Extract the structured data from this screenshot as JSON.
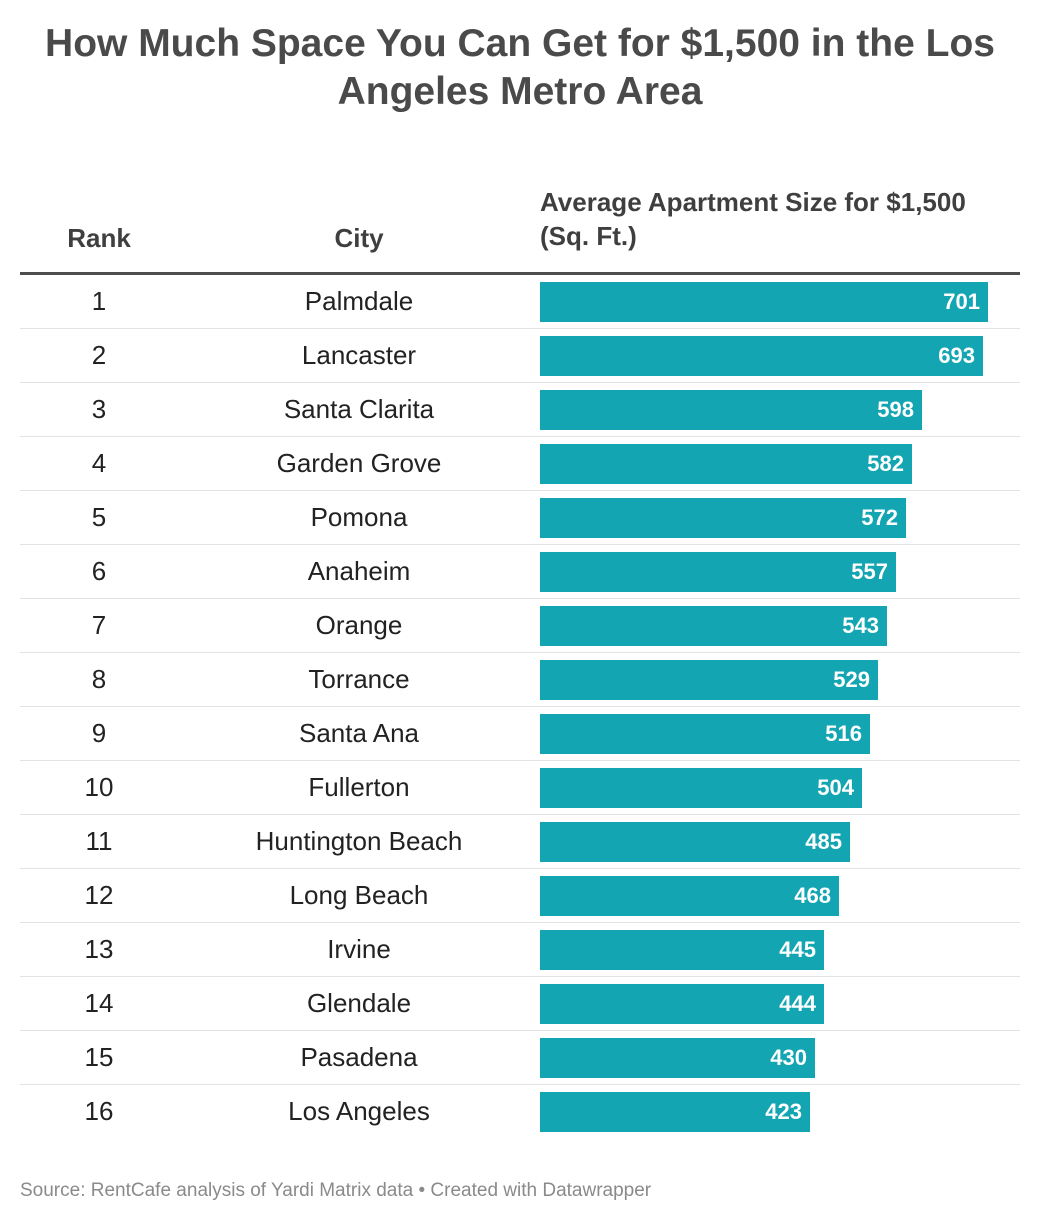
{
  "chart_data": {
    "type": "bar",
    "orientation": "horizontal",
    "title": "How Much Space You Can Get for $1,500 in the Los Angeles Metro Area",
    "columns": {
      "rank": "Rank",
      "city": "City",
      "value": "Average Apartment Size for $1,500 (Sq. Ft.)"
    },
    "rows": [
      {
        "rank": "1",
        "city": "Palmdale",
        "value": 701
      },
      {
        "rank": "2",
        "city": "Lancaster",
        "value": 693
      },
      {
        "rank": "3",
        "city": "Santa Clarita",
        "value": 598
      },
      {
        "rank": "4",
        "city": "Garden Grove",
        "value": 582
      },
      {
        "rank": "5",
        "city": "Pomona",
        "value": 572
      },
      {
        "rank": "6",
        "city": "Anaheim",
        "value": 557
      },
      {
        "rank": "7",
        "city": "Orange",
        "value": 543
      },
      {
        "rank": "8",
        "city": "Torrance",
        "value": 529
      },
      {
        "rank": "9",
        "city": "Santa Ana",
        "value": 516
      },
      {
        "rank": "10",
        "city": "Fullerton",
        "value": 504
      },
      {
        "rank": "11",
        "city": "Huntington Beach",
        "value": 485
      },
      {
        "rank": "12",
        "city": "Long Beach",
        "value": 468
      },
      {
        "rank": "13",
        "city": "Irvine",
        "value": 445
      },
      {
        "rank": "14",
        "city": "Glendale",
        "value": 444
      },
      {
        "rank": "15",
        "city": "Pasadena",
        "value": 430
      },
      {
        "rank": "16",
        "city": "Los Angeles",
        "value": 423
      }
    ],
    "xlim": [
      0,
      701
    ],
    "bar_color": "#14a5b3",
    "source": "Source: RentCafe analysis of Yardi Matrix data • Created with Datawrapper"
  }
}
